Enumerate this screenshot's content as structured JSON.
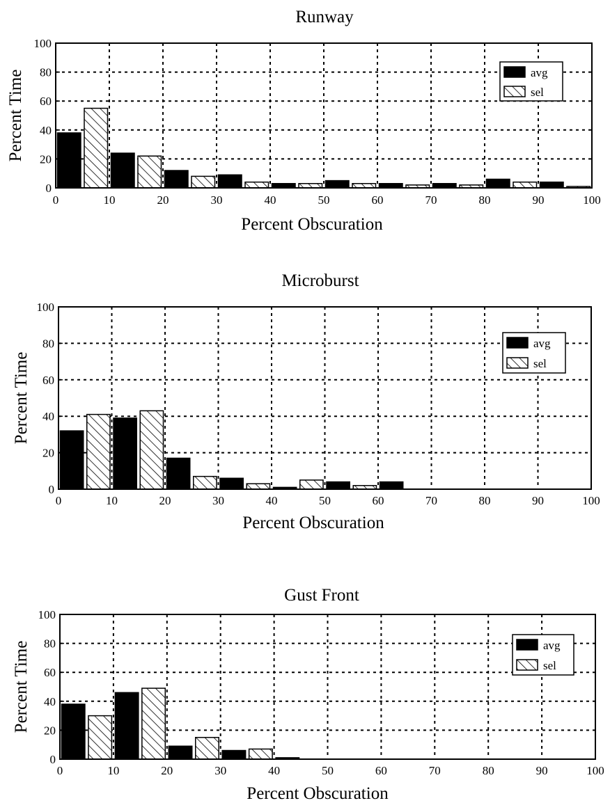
{
  "chart_data": [
    {
      "type": "bar",
      "title": "Runway",
      "xlabel": "Percent Obscuration",
      "ylabel": "Percent Time",
      "xlim": [
        0,
        100
      ],
      "ylim": [
        0,
        100
      ],
      "xticks": [
        "0",
        "10",
        "20",
        "30",
        "40",
        "50",
        "60",
        "70",
        "80",
        "90",
        "100"
      ],
      "yticks": [
        "0",
        "20",
        "40",
        "60",
        "80",
        "100"
      ],
      "grid": true,
      "legend_position": "top-right",
      "categories": [
        "0-10",
        "10-20",
        "20-30",
        "30-40",
        "40-50",
        "50-60",
        "60-70",
        "70-80",
        "80-90",
        "90-100"
      ],
      "series": [
        {
          "name": "avg",
          "style": "solid",
          "values": [
            38,
            24,
            12,
            9,
            3,
            5,
            3,
            3,
            6,
            4
          ]
        },
        {
          "name": "sel",
          "style": "hatched",
          "values": [
            55,
            22,
            8,
            4,
            3,
            3,
            2,
            2,
            4,
            1
          ]
        }
      ]
    },
    {
      "type": "bar",
      "title": "Microburst",
      "xlabel": "Percent Obscuration",
      "ylabel": "Percent Time",
      "xlim": [
        0,
        100
      ],
      "ylim": [
        0,
        100
      ],
      "xticks": [
        "0",
        "10",
        "20",
        "30",
        "40",
        "50",
        "60",
        "70",
        "80",
        "90",
        "100"
      ],
      "yticks": [
        "0",
        "20",
        "40",
        "60",
        "80",
        "100"
      ],
      "grid": true,
      "legend_position": "top-right",
      "categories": [
        "0-10",
        "10-20",
        "20-30",
        "30-40",
        "40-50",
        "50-60",
        "60-70",
        "70-80",
        "80-90",
        "90-100"
      ],
      "series": [
        {
          "name": "avg",
          "style": "solid",
          "values": [
            32,
            39,
            17,
            6,
            1,
            4,
            4,
            0,
            0,
            0
          ]
        },
        {
          "name": "sel",
          "style": "hatched",
          "values": [
            41,
            43,
            7,
            3,
            5,
            2,
            0,
            0,
            0,
            0
          ]
        }
      ]
    },
    {
      "type": "bar",
      "title": "Gust Front",
      "xlabel": "Percent Obscuration",
      "ylabel": "Percent Time",
      "xlim": [
        0,
        100
      ],
      "ylim": [
        0,
        100
      ],
      "xticks": [
        "0",
        "10",
        "20",
        "30",
        "40",
        "50",
        "60",
        "70",
        "80",
        "90",
        "100"
      ],
      "yticks": [
        "0",
        "20",
        "40",
        "60",
        "80",
        "100"
      ],
      "grid": true,
      "legend_position": "top-right",
      "categories": [
        "0-10",
        "10-20",
        "20-30",
        "30-40",
        "40-50",
        "50-60",
        "60-70",
        "70-80",
        "80-90",
        "90-100"
      ],
      "series": [
        {
          "name": "avg",
          "style": "solid",
          "values": [
            38,
            46,
            9,
            6,
            1,
            0,
            0,
            0,
            0,
            0
          ]
        },
        {
          "name": "sel",
          "style": "hatched",
          "values": [
            30,
            49,
            15,
            7,
            0,
            0,
            0,
            0,
            0,
            0
          ]
        }
      ]
    }
  ]
}
